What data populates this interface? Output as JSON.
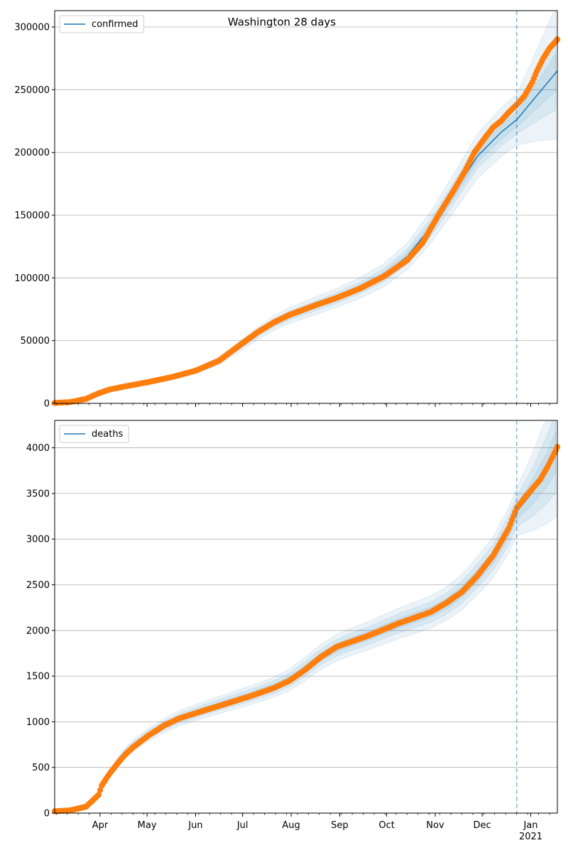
{
  "colors": {
    "fit_line": "#1f77b4",
    "band": "#1f77b4",
    "observed": "#ff7f0e",
    "grid": "#b0b0b0",
    "forecast_marker": "#1f77b4"
  },
  "chart_data": [
    {
      "type": "scatter",
      "title": "Washington 28 days",
      "legend": {
        "label": "confirmed",
        "placement": "top-left"
      },
      "ylim": [
        0,
        313000
      ],
      "yticks": [
        0,
        50000,
        100000,
        150000,
        200000,
        250000,
        300000
      ],
      "ytick_labels": [
        "0",
        "50000",
        "100000",
        "150000",
        "200000",
        "250000",
        "300000"
      ],
      "grid": "horizontal",
      "xlim_days": [
        0,
        321
      ],
      "forecast_start_day": 295,
      "observed_end_day": 321,
      "series": {
        "fit": [
          [
            0,
            300
          ],
          [
            15,
            2500
          ],
          [
            30,
            9500
          ],
          [
            45,
            13500
          ],
          [
            60,
            17000
          ],
          [
            75,
            21000
          ],
          [
            90,
            26000
          ],
          [
            105,
            34000
          ],
          [
            120,
            47000
          ],
          [
            130,
            56000
          ],
          [
            140,
            64000
          ],
          [
            150,
            70000
          ],
          [
            165,
            77000
          ],
          [
            180,
            84000
          ],
          [
            195,
            92000
          ],
          [
            210,
            102000
          ],
          [
            225,
            117000
          ],
          [
            240,
            140000
          ],
          [
            255,
            168000
          ],
          [
            270,
            197000
          ],
          [
            285,
            216000
          ],
          [
            295,
            226000
          ],
          [
            305,
            241000
          ],
          [
            315,
            256000
          ],
          [
            321,
            265000
          ]
        ],
        "observed": [
          [
            0,
            300
          ],
          [
            10,
            1000
          ],
          [
            20,
            3500
          ],
          [
            28,
            8000
          ],
          [
            35,
            11000
          ],
          [
            45,
            13500
          ],
          [
            60,
            17000
          ],
          [
            75,
            21000
          ],
          [
            90,
            26000
          ],
          [
            105,
            34000
          ],
          [
            120,
            48000
          ],
          [
            130,
            57000
          ],
          [
            140,
            64500
          ],
          [
            150,
            70500
          ],
          [
            165,
            77500
          ],
          [
            180,
            84000
          ],
          [
            195,
            91500
          ],
          [
            210,
            101000
          ],
          [
            225,
            114000
          ],
          [
            235,
            128000
          ],
          [
            245,
            150000
          ],
          [
            255,
            170000
          ],
          [
            262,
            185000
          ],
          [
            268,
            200000
          ],
          [
            275,
            212000
          ],
          [
            280,
            220000
          ],
          [
            285,
            225000
          ],
          [
            290,
            232000
          ],
          [
            295,
            238000
          ],
          [
            300,
            245000
          ],
          [
            305,
            256000
          ],
          [
            308,
            265000
          ],
          [
            312,
            275000
          ],
          [
            316,
            283000
          ],
          [
            321,
            290000
          ]
        ],
        "band_widths": [
          0.025,
          0.05,
          0.09
        ]
      }
    },
    {
      "type": "scatter",
      "title": "",
      "legend": {
        "label": "deaths",
        "placement": "top-left"
      },
      "ylim": [
        0,
        4300
      ],
      "yticks": [
        0,
        500,
        1000,
        1500,
        2000,
        2500,
        3000,
        3500,
        4000
      ],
      "ytick_labels": [
        "0",
        "500",
        "1000",
        "1500",
        "2000",
        "2500",
        "3000",
        "3500",
        "4000"
      ],
      "grid": "horizontal",
      "xlim_days": [
        0,
        321
      ],
      "forecast_start_day": 295,
      "observed_end_day": 321,
      "series": {
        "fit": [
          [
            0,
            20
          ],
          [
            10,
            30
          ],
          [
            20,
            70
          ],
          [
            25,
            150
          ],
          [
            30,
            270
          ],
          [
            35,
            430
          ],
          [
            40,
            560
          ],
          [
            45,
            660
          ],
          [
            50,
            740
          ],
          [
            60,
            860
          ],
          [
            70,
            960
          ],
          [
            80,
            1040
          ],
          [
            95,
            1130
          ],
          [
            110,
            1210
          ],
          [
            125,
            1290
          ],
          [
            140,
            1380
          ],
          [
            150,
            1460
          ],
          [
            160,
            1580
          ],
          [
            170,
            1710
          ],
          [
            180,
            1810
          ],
          [
            190,
            1880
          ],
          [
            200,
            1940
          ],
          [
            210,
            2010
          ],
          [
            220,
            2080
          ],
          [
            230,
            2140
          ],
          [
            240,
            2200
          ],
          [
            250,
            2290
          ],
          [
            260,
            2420
          ],
          [
            270,
            2600
          ],
          [
            280,
            2800
          ],
          [
            290,
            3100
          ],
          [
            295,
            3300
          ],
          [
            305,
            3510
          ],
          [
            315,
            3780
          ],
          [
            321,
            3990
          ]
        ],
        "observed": [
          [
            0,
            20
          ],
          [
            10,
            30
          ],
          [
            20,
            70
          ],
          [
            25,
            150
          ],
          [
            28,
            200
          ],
          [
            30,
            300
          ],
          [
            33,
            380
          ],
          [
            35,
            430
          ],
          [
            40,
            540
          ],
          [
            45,
            640
          ],
          [
            50,
            720
          ],
          [
            60,
            850
          ],
          [
            70,
            960
          ],
          [
            80,
            1040
          ],
          [
            95,
            1120
          ],
          [
            110,
            1200
          ],
          [
            125,
            1280
          ],
          [
            140,
            1370
          ],
          [
            150,
            1450
          ],
          [
            160,
            1570
          ],
          [
            170,
            1710
          ],
          [
            180,
            1820
          ],
          [
            190,
            1880
          ],
          [
            200,
            1940
          ],
          [
            210,
            2010
          ],
          [
            220,
            2080
          ],
          [
            230,
            2140
          ],
          [
            240,
            2200
          ],
          [
            250,
            2300
          ],
          [
            260,
            2420
          ],
          [
            270,
            2600
          ],
          [
            280,
            2820
          ],
          [
            290,
            3120
          ],
          [
            295,
            3340
          ],
          [
            300,
            3450
          ],
          [
            305,
            3550
          ],
          [
            310,
            3650
          ],
          [
            315,
            3800
          ],
          [
            321,
            4010
          ]
        ],
        "band_widths": [
          0.025,
          0.05,
          0.08
        ]
      }
    }
  ],
  "x_axis": {
    "ticks": [
      {
        "day": 29,
        "label": "Apr"
      },
      {
        "day": 59,
        "label": "May"
      },
      {
        "day": 90,
        "label": "Jun"
      },
      {
        "day": 120,
        "label": "Jul"
      },
      {
        "day": 151,
        "label": "Aug"
      },
      {
        "day": 182,
        "label": "Sep"
      },
      {
        "day": 212,
        "label": "Oct"
      },
      {
        "day": 243,
        "label": "Nov"
      },
      {
        "day": 273,
        "label": "Dec"
      },
      {
        "day": 304,
        "label": "Jan",
        "sublabel": "2021"
      }
    ]
  }
}
